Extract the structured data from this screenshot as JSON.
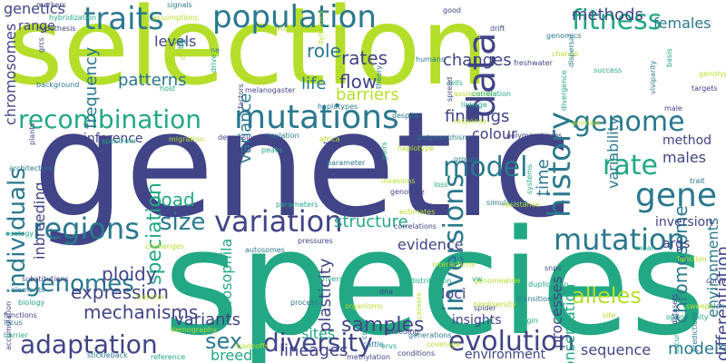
{
  "wordcloud": {
    "words": {
      "selection": "selection",
      "genetic": "genetic",
      "species": "species",
      "population": "population",
      "traits": "traits",
      "mutations": "mutations",
      "recombination": "recombination",
      "fitness": "fitness",
      "data": "data",
      "genome": "genome",
      "rate": "rate",
      "gene": "gene",
      "model": "model",
      "history": "history",
      "variation": "variation",
      "size": "size",
      "mutation": "mutation",
      "regions": "regions",
      "individuals": "individuals",
      "genomes": "genomes",
      "expression": "expression",
      "adaptation": "adaptation",
      "diversity": "diversity",
      "evolution": "evolution",
      "sex": "sex",
      "inversions": "inversions",
      "alleles": "alleles",
      "samples": "samples",
      "models": "models",
      "methods": "methods",
      "changes": "changes",
      "rates": "rates",
      "barriers": "barriers",
      "role": "role",
      "flow": "flow",
      "life": "life",
      "patterns": "patterns",
      "frequency": "frequency",
      "variance": "variance",
      "levels": "levels",
      "structure": "structure",
      "findings": "findings",
      "colour": "colour",
      "time": "time",
      "speciation": "speciation",
      "load": "load",
      "ploidy": "ploidy",
      "mechanisms": "mechanisms",
      "variants": "variants",
      "breeds": "breeds",
      "lineages": "lineages",
      "sites": "sites",
      "sequence": "sequence",
      "environment": "environment",
      "females": "females",
      "males": "males",
      "variability": "variability",
      "environments": "environments",
      "differentiation": "differentiation",
      "chromosome": "chromosome",
      "conservation": "conservation",
      "processes": "processes",
      "plasticity": "plasticity",
      "drosophila": "drosophila",
      "loci": "loci",
      "evidence": "evidence",
      "inbreeding": "inbreeding",
      "chromosomes": "chromosomes",
      "genetics": "genetics",
      "range": "range",
      "inference": "inference",
      "inversion": "inversion",
      "method": "method",
      "args": "args",
      "insights": "insights"
    },
    "small_words": [
      "markers",
      "signals",
      "hybridization",
      "assumptions",
      "hypothesis",
      "care",
      "tes",
      "dfe",
      "grcs",
      "background",
      "host",
      "extinction",
      "factors",
      "haplotypes",
      "cells",
      "association",
      "spread",
      "theory",
      "linkage",
      "taxa",
      "drift",
      "genomics",
      "success",
      "change",
      "freshwater",
      "dispersal",
      "basis",
      "genotypes",
      "targets",
      "viviparity",
      "divergence",
      "animals",
      "male",
      "despite",
      "correlation",
      "response",
      "polymorphisms",
      "parameter",
      "pairs",
      "invasions",
      "genotype",
      "groups",
      "loss",
      "africa",
      "plant",
      "isolation",
      "peaks",
      "haplotype",
      "plants",
      "architecture",
      "spectrum",
      "migration",
      "depression",
      "polymorphism",
      "ecology",
      "challenges",
      "pressures",
      "autosomes",
      "parameters",
      "estimates",
      "correlations",
      "simulations",
      "systems",
      "resistance",
      "substitutions",
      "elements",
      "biology",
      "transfer",
      "functions",
      "locus",
      "barrier",
      "demography",
      "accumulation",
      "stickleback",
      "reference",
      "tradeoffs",
      "conditions",
      "generations",
      "origin",
      "coverage",
      "methylation",
      "cattle",
      "ervs",
      "careers",
      "spider",
      "transitions",
      "duplication",
      "genomewide",
      "snps",
      "trait",
      "mean",
      "function",
      "conflict",
      "island",
      "opportunity",
      "sweeps",
      "datasets",
      "predictions",
      "accuracy",
      "organisms",
      "breeding",
      "code",
      "distribution",
      "biodiversity",
      "dna",
      "process",
      "drivers",
      "interactions",
      "melanogaster",
      "ne",
      "drive",
      "dynamics",
      "good",
      "humans",
      "vw",
      "site"
    ],
    "palette": {
      "lime": "#b5de2b",
      "teal": "#22a884",
      "blue": "#2a788e",
      "indigo": "#414487"
    }
  }
}
